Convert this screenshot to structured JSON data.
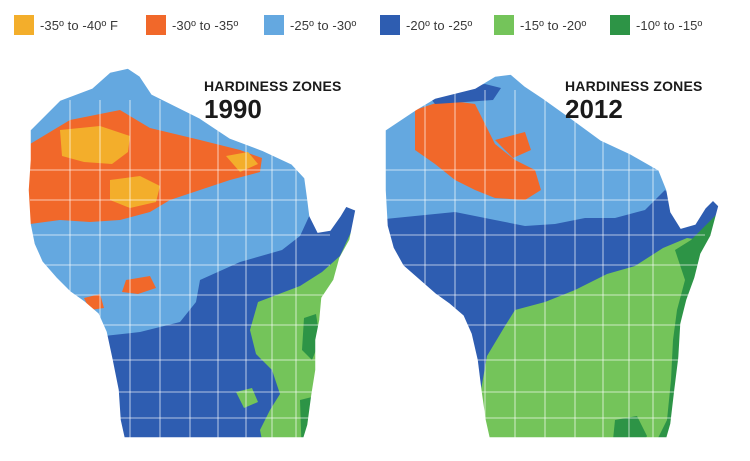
{
  "legend": [
    {
      "label": "-35º to -40º F",
      "color": "#f3ae2b"
    },
    {
      "label": "-30º to -35º",
      "color": "#f1682a"
    },
    {
      "label": "-25º to -30º",
      "color": "#64a8e0"
    },
    {
      "label": "-20º to -25º",
      "color": "#2e5db1"
    },
    {
      "label": "-15º to -20º",
      "color": "#74c45a"
    },
    {
      "label": "-10º to -15º",
      "color": "#2d9446"
    }
  ],
  "maps": [
    {
      "heading": "HARDINESS ZONES",
      "year": "1990"
    },
    {
      "heading": "HARDINESS ZONES",
      "year": "2012"
    }
  ]
}
